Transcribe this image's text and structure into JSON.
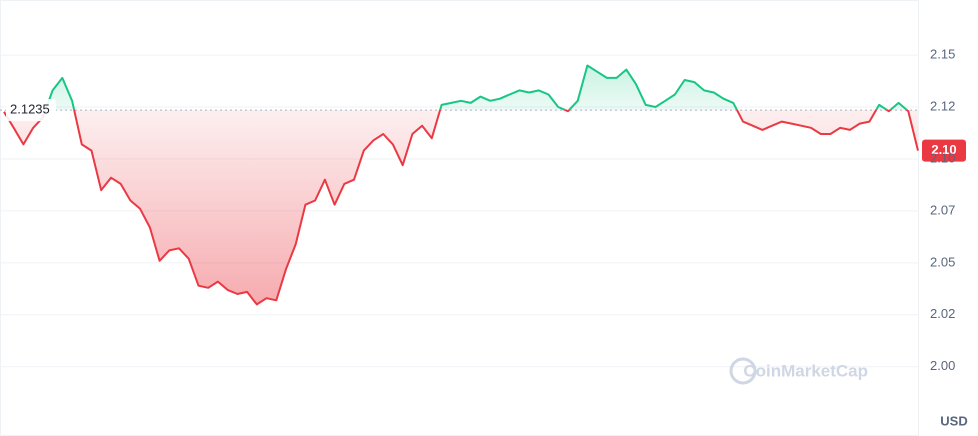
{
  "chart_data": {
    "type": "line",
    "values": [
      2.1227,
      2.115,
      2.107,
      2.115,
      2.12,
      2.133,
      2.139,
      2.128,
      2.107,
      2.104,
      2.085,
      2.091,
      2.088,
      2.08,
      2.076,
      2.067,
      2.051,
      2.056,
      2.057,
      2.052,
      2.039,
      2.038,
      2.041,
      2.037,
      2.035,
      2.036,
      2.03,
      2.033,
      2.032,
      2.047,
      2.059,
      2.078,
      2.08,
      2.09,
      2.078,
      2.088,
      2.09,
      2.104,
      2.109,
      2.112,
      2.107,
      2.097,
      2.112,
      2.116,
      2.11,
      2.126,
      2.127,
      2.128,
      2.127,
      2.13,
      2.128,
      2.129,
      2.131,
      2.133,
      2.132,
      2.133,
      2.131,
      2.125,
      2.123,
      2.128,
      2.145,
      2.142,
      2.139,
      2.139,
      2.143,
      2.136,
      2.126,
      2.125,
      2.128,
      2.131,
      2.138,
      2.137,
      2.133,
      2.132,
      2.129,
      2.127,
      2.118,
      2.116,
      2.114,
      2.116,
      2.118,
      2.117,
      2.116,
      2.115,
      2.112,
      2.112,
      2.115,
      2.114,
      2.117,
      2.118,
      2.126,
      2.123,
      2.127,
      2.123,
      2.104
    ],
    "value_labels": [
      null,
      null,
      null,
      null,
      null,
      null,
      null,
      null,
      null,
      null,
      null,
      null,
      null,
      null,
      null,
      null,
      null,
      null,
      null,
      null,
      null,
      null,
      null,
      null,
      null,
      null,
      null,
      null,
      null,
      null,
      null,
      null,
      null,
      null,
      null,
      null,
      null,
      null,
      null,
      null,
      null,
      null,
      null,
      null,
      null,
      null,
      null,
      null,
      null,
      null,
      null,
      null,
      null,
      null,
      null,
      null,
      null,
      null,
      null,
      null,
      null,
      null,
      null,
      null,
      null,
      null,
      null,
      null,
      null,
      null,
      null,
      null,
      null,
      null,
      null,
      null,
      null,
      null,
      null,
      null,
      null,
      null,
      null,
      null,
      null,
      null,
      null,
      null,
      null,
      null,
      null,
      null,
      null,
      null,
      "2.10"
    ],
    "baseline": {
      "value": 2.1235,
      "label": "2.1235"
    },
    "up_color": "#16c784",
    "down_color": "#ea3943",
    "ylim": [
      1.984,
      2.1765
    ],
    "yticks": [
      {
        "value": 2.0,
        "label": "2.00"
      },
      {
        "value": 2.025,
        "label": "2.02"
      },
      {
        "value": 2.05,
        "label": "2.05"
      },
      {
        "value": 2.075,
        "label": "2.07"
      },
      {
        "value": 2.1,
        "label": "2.10"
      },
      {
        "value": 2.125,
        "label": "2.12"
      },
      {
        "value": 2.15,
        "label": "2.15"
      }
    ],
    "grid": true,
    "y_unit": "USD",
    "watermark": "CoinMarketCap"
  }
}
